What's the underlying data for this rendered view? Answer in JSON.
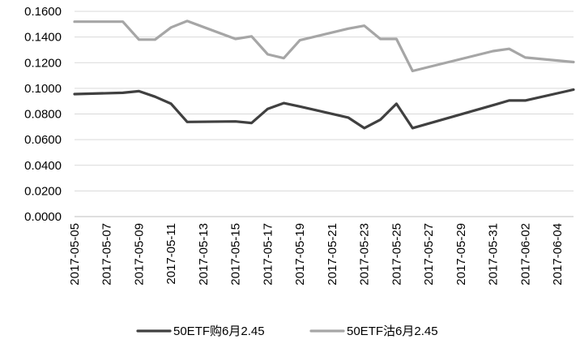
{
  "chart_data": {
    "type": "line",
    "title": "",
    "xlabel": "",
    "ylabel": "",
    "ylim": [
      0,
      0.16
    ],
    "y_ticks": [
      "0.0000",
      "0.0200",
      "0.0400",
      "0.0600",
      "0.0800",
      "0.1000",
      "0.1200",
      "0.1400",
      "0.1600"
    ],
    "x_tick_labels": [
      "2017-05-05",
      "2017-05-07",
      "2017-05-09",
      "2017-05-11",
      "2017-05-13",
      "2017-05-15",
      "2017-05-17",
      "2017-05-19",
      "2017-05-21",
      "2017-05-23",
      "2017-05-25",
      "2017-05-27",
      "2017-05-29",
      "2017-05-31",
      "2017-06-02",
      "2017-06-04"
    ],
    "x_start": "2017-05-05",
    "x_end": "2017-06-05",
    "grid": "horizontal",
    "legend_position": "bottom",
    "series": [
      {
        "name": "50ETF购6月2.45",
        "color": "#404040",
        "points": [
          [
            "2017-05-05",
            0.0955
          ],
          [
            "2017-05-08",
            0.0965
          ],
          [
            "2017-05-09",
            0.0978
          ],
          [
            "2017-05-10",
            0.0935
          ],
          [
            "2017-05-11",
            0.088
          ],
          [
            "2017-05-12",
            0.0738
          ],
          [
            "2017-05-15",
            0.0742
          ],
          [
            "2017-05-16",
            0.073
          ],
          [
            "2017-05-17",
            0.084
          ],
          [
            "2017-05-18",
            0.0885
          ],
          [
            "2017-05-19",
            0.0858
          ],
          [
            "2017-05-22",
            0.0772
          ],
          [
            "2017-05-23",
            0.069
          ],
          [
            "2017-05-24",
            0.0755
          ],
          [
            "2017-05-25",
            0.088
          ],
          [
            "2017-05-26",
            0.069
          ],
          [
            "2017-05-31",
            0.0868
          ],
          [
            "2017-06-01",
            0.0905
          ],
          [
            "2017-06-02",
            0.0905
          ],
          [
            "2017-06-05",
            0.099
          ]
        ]
      },
      {
        "name": "50ETF沽6月2.45",
        "color": "#a6a6a6",
        "points": [
          [
            "2017-05-05",
            0.152
          ],
          [
            "2017-05-08",
            0.152
          ],
          [
            "2017-05-09",
            0.138
          ],
          [
            "2017-05-10",
            0.138
          ],
          [
            "2017-05-11",
            0.1475
          ],
          [
            "2017-05-12",
            0.1525
          ],
          [
            "2017-05-15",
            0.1385
          ],
          [
            "2017-05-16",
            0.1405
          ],
          [
            "2017-05-17",
            0.1265
          ],
          [
            "2017-05-18",
            0.1235
          ],
          [
            "2017-05-19",
            0.1375
          ],
          [
            "2017-05-22",
            0.1465
          ],
          [
            "2017-05-23",
            0.1488
          ],
          [
            "2017-05-24",
            0.1385
          ],
          [
            "2017-05-25",
            0.1385
          ],
          [
            "2017-05-26",
            0.1135
          ],
          [
            "2017-05-31",
            0.129
          ],
          [
            "2017-06-01",
            0.1308
          ],
          [
            "2017-06-02",
            0.124
          ],
          [
            "2017-06-05",
            0.1205
          ]
        ]
      }
    ]
  }
}
